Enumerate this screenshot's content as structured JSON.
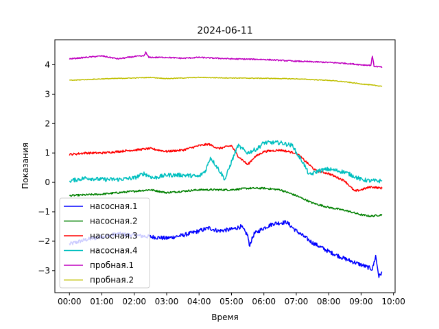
{
  "chart_data": {
    "type": "line",
    "title": "2024-06-11",
    "xlabel": "Время",
    "ylabel": "Показания",
    "xlim": [
      -0.45,
      10.05
    ],
    "ylim": [
      -3.75,
      4.85
    ],
    "x_ticks": [
      {
        "v": 0,
        "label": "00:00"
      },
      {
        "v": 1,
        "label": "01:00"
      },
      {
        "v": 2,
        "label": "02:00"
      },
      {
        "v": 3,
        "label": "03:00"
      },
      {
        "v": 4,
        "label": "04:00"
      },
      {
        "v": 5,
        "label": "05:00"
      },
      {
        "v": 6,
        "label": "06:00"
      },
      {
        "v": 7,
        "label": "07:00"
      },
      {
        "v": 8,
        "label": "08:00"
      },
      {
        "v": 9,
        "label": "09:00"
      },
      {
        "v": 10,
        "label": "10:00"
      }
    ],
    "y_ticks": [
      {
        "v": -3,
        "label": "−3"
      },
      {
        "v": -2,
        "label": "−2"
      },
      {
        "v": -1,
        "label": "−1"
      },
      {
        "v": 0,
        "label": "0"
      },
      {
        "v": 1,
        "label": "1"
      },
      {
        "v": 2,
        "label": "2"
      },
      {
        "v": 3,
        "label": "3"
      },
      {
        "v": 4,
        "label": "4"
      }
    ],
    "grid": false,
    "legend_position": "lower-left",
    "series": [
      {
        "name": "насосная.1",
        "color": "#0000ff",
        "noise": 0.07,
        "points": [
          [
            0,
            -2.1
          ],
          [
            0.5,
            -1.95
          ],
          [
            1,
            -1.85
          ],
          [
            1.5,
            -1.75
          ],
          [
            2,
            -1.8
          ],
          [
            2.5,
            -1.85
          ],
          [
            3,
            -1.9
          ],
          [
            3.5,
            -1.8
          ],
          [
            4,
            -1.65
          ],
          [
            4.3,
            -1.55
          ],
          [
            4.6,
            -1.65
          ],
          [
            5,
            -1.6
          ],
          [
            5.3,
            -1.5
          ],
          [
            5.5,
            -1.8
          ],
          [
            5.55,
            -2.15
          ],
          [
            5.7,
            -1.75
          ],
          [
            6,
            -1.55
          ],
          [
            6.3,
            -1.4
          ],
          [
            6.7,
            -1.35
          ],
          [
            7,
            -1.65
          ],
          [
            7.5,
            -2.05
          ],
          [
            8,
            -2.35
          ],
          [
            8.5,
            -2.6
          ],
          [
            9,
            -2.8
          ],
          [
            9.35,
            -2.95
          ],
          [
            9.45,
            -2.5
          ],
          [
            9.55,
            -3.2
          ],
          [
            9.65,
            -3.05
          ]
        ]
      },
      {
        "name": "насосная.2",
        "color": "#008000",
        "noise": 0.03,
        "points": [
          [
            0,
            -0.45
          ],
          [
            1,
            -0.4
          ],
          [
            2,
            -0.3
          ],
          [
            2.5,
            -0.25
          ],
          [
            3,
            -0.35
          ],
          [
            4,
            -0.25
          ],
          [
            5,
            -0.25
          ],
          [
            5.5,
            -0.2
          ],
          [
            6,
            -0.2
          ],
          [
            6.5,
            -0.25
          ],
          [
            7,
            -0.45
          ],
          [
            7.5,
            -0.7
          ],
          [
            8,
            -0.85
          ],
          [
            8.5,
            -0.95
          ],
          [
            9,
            -1.1
          ],
          [
            9.3,
            -1.15
          ],
          [
            9.65,
            -1.1
          ]
        ]
      },
      {
        "name": "насосная.3",
        "color": "#ff0000",
        "noise": 0.035,
        "points": [
          [
            0,
            0.95
          ],
          [
            0.5,
            1.0
          ],
          [
            1,
            1.0
          ],
          [
            1.5,
            1.05
          ],
          [
            2,
            1.1
          ],
          [
            2.5,
            1.15
          ],
          [
            3,
            1.05
          ],
          [
            3.5,
            1.1
          ],
          [
            4,
            1.25
          ],
          [
            4.3,
            1.3
          ],
          [
            4.6,
            1.15
          ],
          [
            5,
            1.25
          ],
          [
            5.2,
            0.9
          ],
          [
            5.5,
            0.6
          ],
          [
            5.7,
            0.85
          ],
          [
            6,
            1.05
          ],
          [
            6.5,
            1.1
          ],
          [
            7,
            1.0
          ],
          [
            7.3,
            0.7
          ],
          [
            7.6,
            0.4
          ],
          [
            8,
            0.3
          ],
          [
            8.5,
            0.05
          ],
          [
            8.8,
            -0.3
          ],
          [
            9,
            -0.25
          ],
          [
            9.3,
            -0.15
          ],
          [
            9.65,
            -0.2
          ]
        ]
      },
      {
        "name": "насосная.4",
        "color": "#00bfbf",
        "noise": 0.07,
        "points": [
          [
            0,
            0.05
          ],
          [
            0.5,
            0.15
          ],
          [
            1,
            0.1
          ],
          [
            1.5,
            0.1
          ],
          [
            2,
            0.15
          ],
          [
            2.3,
            0.3
          ],
          [
            2.6,
            0.15
          ],
          [
            3,
            0.25
          ],
          [
            3.5,
            0.25
          ],
          [
            4,
            0.2
          ],
          [
            4.2,
            0.4
          ],
          [
            4.35,
            0.85
          ],
          [
            4.6,
            0.45
          ],
          [
            4.8,
            0.1
          ],
          [
            5,
            0.7
          ],
          [
            5.2,
            1.25
          ],
          [
            5.5,
            1.0
          ],
          [
            5.8,
            1.15
          ],
          [
            6,
            1.35
          ],
          [
            6.5,
            1.35
          ],
          [
            6.9,
            1.25
          ],
          [
            7,
            1.0
          ],
          [
            7.2,
            0.7
          ],
          [
            7.4,
            0.25
          ],
          [
            7.7,
            0.4
          ],
          [
            8,
            0.45
          ],
          [
            8.5,
            0.35
          ],
          [
            9,
            0.1
          ],
          [
            9.3,
            0.05
          ],
          [
            9.65,
            0.05
          ]
        ]
      },
      {
        "name": "пробная.1",
        "color": "#bf00bf",
        "noise": 0.02,
        "points": [
          [
            0,
            4.2
          ],
          [
            0.5,
            4.25
          ],
          [
            1,
            4.3
          ],
          [
            1.5,
            4.2
          ],
          [
            2,
            4.28
          ],
          [
            2.3,
            4.3
          ],
          [
            2.35,
            4.42
          ],
          [
            2.45,
            4.25
          ],
          [
            3,
            4.25
          ],
          [
            3.5,
            4.22
          ],
          [
            4,
            4.25
          ],
          [
            5,
            4.2
          ],
          [
            6,
            4.18
          ],
          [
            7,
            4.12
          ],
          [
            8,
            4.08
          ],
          [
            8.5,
            4.05
          ],
          [
            9,
            4.0
          ],
          [
            9.3,
            3.98
          ],
          [
            9.35,
            4.3
          ],
          [
            9.4,
            3.95
          ],
          [
            9.65,
            3.92
          ]
        ]
      },
      {
        "name": "пробная.2",
        "color": "#bfbf00",
        "noise": 0.012,
        "points": [
          [
            0,
            3.47
          ],
          [
            1,
            3.52
          ],
          [
            2,
            3.55
          ],
          [
            2.5,
            3.57
          ],
          [
            3,
            3.53
          ],
          [
            4,
            3.57
          ],
          [
            5,
            3.55
          ],
          [
            6,
            3.54
          ],
          [
            7,
            3.52
          ],
          [
            8,
            3.47
          ],
          [
            8.5,
            3.42
          ],
          [
            9,
            3.35
          ],
          [
            9.65,
            3.27
          ]
        ]
      }
    ]
  }
}
